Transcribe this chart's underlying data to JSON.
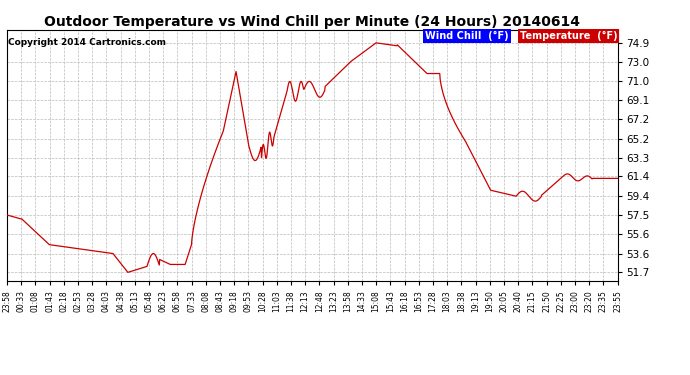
{
  "title": "Outdoor Temperature vs Wind Chill per Minute (24 Hours) 20140614",
  "copyright": "Copyright 2014 Cartronics.com",
  "legend_wind_chill": "Wind Chill  (°F)",
  "legend_temperature": "Temperature  (°F)",
  "yticks": [
    51.7,
    53.6,
    55.6,
    57.5,
    59.4,
    61.4,
    63.3,
    65.2,
    67.2,
    69.1,
    71.0,
    73.0,
    74.9
  ],
  "ylim": [
    50.8,
    76.2
  ],
  "background_color": "#ffffff",
  "plot_bg_color": "#ffffff",
  "grid_color": "#bbbbbb",
  "line_color": "#cc0000",
  "title_fontsize": 11,
  "xtick_labels": [
    "23:58",
    "00:33",
    "01:08",
    "01:43",
    "02:18",
    "02:53",
    "03:28",
    "04:03",
    "04:38",
    "05:13",
    "05:48",
    "06:23",
    "06:58",
    "07:33",
    "08:08",
    "08:43",
    "09:18",
    "09:53",
    "10:28",
    "11:03",
    "11:38",
    "12:13",
    "12:48",
    "13:23",
    "13:58",
    "14:33",
    "15:08",
    "15:43",
    "16:18",
    "16:53",
    "17:28",
    "18:03",
    "18:38",
    "19:13",
    "19:50",
    "20:05",
    "20:40",
    "21:15",
    "21:50",
    "22:25",
    "23:00",
    "23:20",
    "23:35",
    "23:55"
  ]
}
